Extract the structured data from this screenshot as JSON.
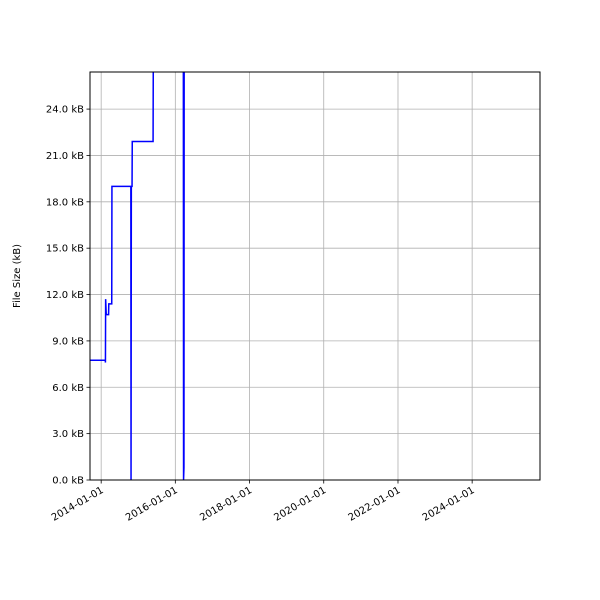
{
  "chart_data": {
    "type": "line",
    "title": "",
    "xlabel": "",
    "ylabel": "File Size (kB)",
    "xlim": [
      "2013-09-13",
      "2025-10-30"
    ],
    "ylim": [
      0,
      26.4
    ],
    "grid": true,
    "line_color": "#0000ff",
    "grid_color": "#b0b0b0",
    "x_ticks": [
      "2014-01-01",
      "2016-01-01",
      "2018-01-01",
      "2020-01-01",
      "2022-01-01",
      "2024-01-01"
    ],
    "y_ticks": [
      {
        "value": 0,
        "label": "0.0 kB"
      },
      {
        "value": 3,
        "label": "3.0 kB"
      },
      {
        "value": 6,
        "label": "6.0 kB"
      },
      {
        "value": 9,
        "label": "9.0 kB"
      },
      {
        "value": 12,
        "label": "12.0 kB"
      },
      {
        "value": 15,
        "label": "15.0 kB"
      },
      {
        "value": 18,
        "label": "18.0 kB"
      },
      {
        "value": 21,
        "label": "21.0 kB"
      },
      {
        "value": 24,
        "label": "24.0 kB"
      }
    ],
    "series": [
      {
        "x": [
          "2013-09-13",
          "2014-02-10",
          "2014-02-12",
          "2014-02-14",
          "2014-02-20",
          "2014-03-15",
          "2014-03-17",
          "2014-04-15",
          "2014-04-17",
          "2014-10-20",
          "2014-10-22",
          "2014-10-25",
          "2014-11-01",
          "2014-11-03",
          "2015-05-27",
          "2015-05-29",
          "2016-03-20",
          "2016-03-22",
          "2016-03-26",
          "2016-03-28",
          "2023-05-15"
        ],
        "y": [
          7.75,
          7.75,
          7.6,
          11.7,
          10.7,
          10.7,
          11.4,
          11.4,
          19.0,
          19.0,
          0,
          19.0,
          19.0,
          21.9,
          21.9,
          27,
          27,
          0,
          0.8,
          27,
          27
        ]
      }
    ]
  }
}
